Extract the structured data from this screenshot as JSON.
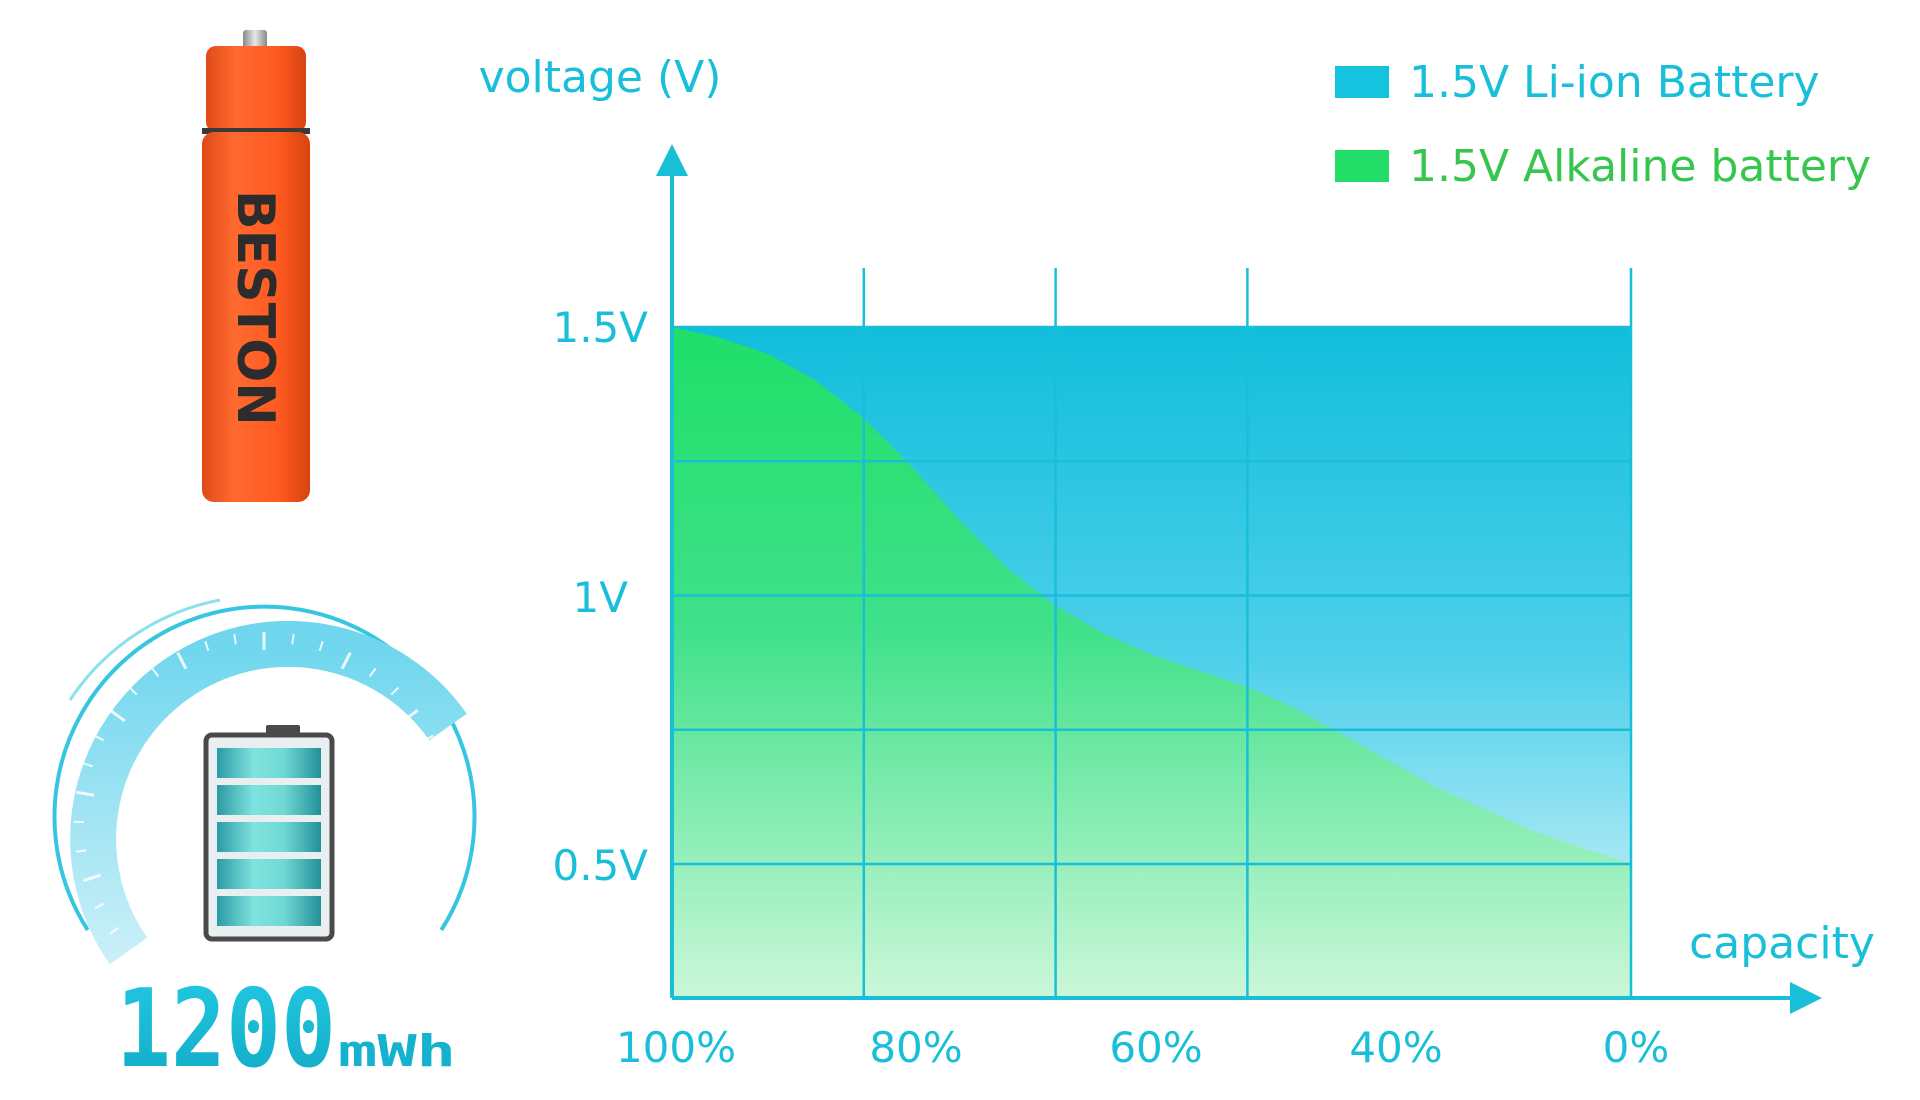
{
  "colors": {
    "accent": "#19bfd8",
    "liion": "#14c3de",
    "alkaline": "#22de69",
    "alkaline_text": "#36c64e",
    "battery_body": "#ff5d24",
    "battery_text": "#2c2c2c"
  },
  "product": {
    "brand": "BESTON",
    "capacity_number": "1200",
    "capacity_unit": "mWh"
  },
  "chart_data": {
    "type": "area",
    "ylabel": "voltage (V)",
    "xlabel": "capacity",
    "x": [
      100,
      95,
      90,
      85,
      80,
      75,
      70,
      65,
      60,
      55,
      50,
      45,
      40,
      35,
      30,
      25,
      20,
      15,
      10,
      5,
      0
    ],
    "x_tick_labels": [
      "100%",
      "80%",
      "60%",
      "40%",
      "0%"
    ],
    "y_tick_labels": [
      "1.5V",
      "1V",
      "0.5V"
    ],
    "y_ticks": [
      1.5,
      1.0,
      0.5
    ],
    "grid": true,
    "legend_position": "top-right",
    "series": [
      {
        "name": "1.5V Li-ion Battery",
        "color": "#14c3de",
        "values": [
          1.5,
          1.5,
          1.5,
          1.5,
          1.5,
          1.5,
          1.5,
          1.5,
          1.5,
          1.5,
          1.5,
          1.5,
          1.5,
          1.5,
          1.5,
          1.5,
          1.5,
          1.5,
          1.5,
          1.5,
          1.5
        ]
      },
      {
        "name": "1.5V Alkaline battery",
        "color": "#22de69",
        "values": [
          1.5,
          1.48,
          1.45,
          1.4,
          1.33,
          1.24,
          1.14,
          1.05,
          0.98,
          0.93,
          0.89,
          0.86,
          0.83,
          0.79,
          0.74,
          0.69,
          0.64,
          0.6,
          0.56,
          0.53,
          0.5
        ]
      }
    ]
  }
}
